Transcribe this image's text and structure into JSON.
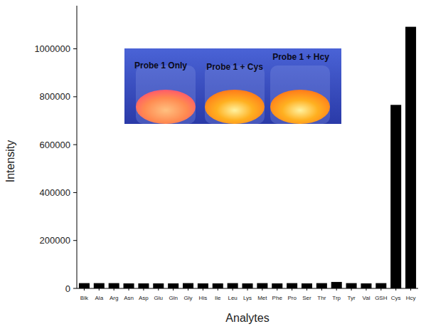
{
  "chart_data": {
    "type": "bar",
    "x_label": "Analytes",
    "y_label": "Intensity",
    "categories": [
      "Blk",
      "Ala",
      "Arg",
      "Asn",
      "Asp",
      "Glu",
      "Gln",
      "Gly",
      "His",
      "Ile",
      "Leu",
      "Lys",
      "Met",
      "Phe",
      "Pro",
      "Ser",
      "Thr",
      "Trp",
      "Tyr",
      "Val",
      "GSH",
      "Cys",
      "Hcy"
    ],
    "values": [
      22000,
      22000,
      22000,
      21000,
      21000,
      21000,
      21000,
      22000,
      21000,
      21000,
      22000,
      21000,
      22000,
      21000,
      22000,
      21000,
      22000,
      27000,
      22000,
      21000,
      22000,
      766000,
      1092000
    ],
    "color": "#000000",
    "ylim": [
      0,
      1180000
    ],
    "yticks": [
      0,
      200000,
      400000,
      600000,
      800000,
      1000000
    ],
    "grid": false,
    "annotations": [
      "Probe 1 Only",
      "Probe 1 + Cys",
      "Probe 1 + Hcy"
    ]
  }
}
